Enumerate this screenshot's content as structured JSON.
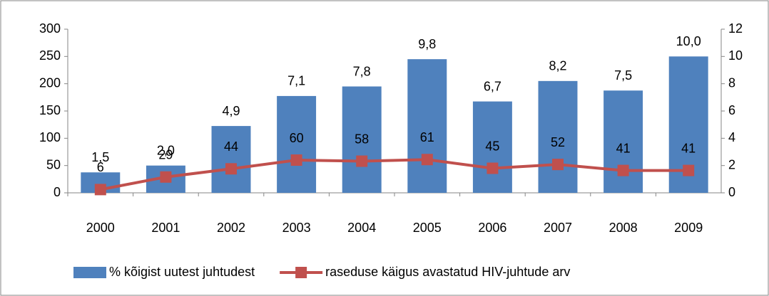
{
  "chart_data": {
    "type": "bar_line",
    "categories": [
      "2000",
      "2001",
      "2002",
      "2003",
      "2004",
      "2005",
      "2006",
      "2007",
      "2008",
      "2009"
    ],
    "series": [
      {
        "name": "% kõigist uutest juhtudest",
        "type": "bar",
        "axis": "y2",
        "color": "#4f81bd",
        "values": [
          1.5,
          2.0,
          4.9,
          7.1,
          7.8,
          9.8,
          6.7,
          8.2,
          7.5,
          10.0
        ],
        "value_labels": [
          "1,5",
          "2,0",
          "4,9",
          "7,1",
          "7,8",
          "9,8",
          "6,7",
          "8,2",
          "7,5",
          "10,0"
        ]
      },
      {
        "name": "raseduse käigus avastatud HIV-juhtude arv",
        "type": "line",
        "axis": "y",
        "color": "#c0504d",
        "values": [
          6,
          29,
          44,
          60,
          58,
          61,
          45,
          52,
          41,
          41
        ]
      }
    ],
    "ylim": [
      0,
      300
    ],
    "yticks": [
      0,
      50,
      100,
      150,
      200,
      250,
      300
    ],
    "y2lim": [
      0,
      12
    ],
    "y2ticks": [
      0,
      2,
      4,
      6,
      8,
      10,
      12
    ],
    "grid": false,
    "legend": "bottom"
  }
}
